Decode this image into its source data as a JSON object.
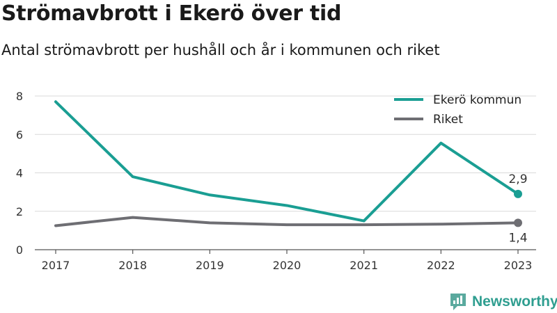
{
  "title": "Strömavbrott i Ekerö över tid",
  "subtitle": "Antal strömavbrott per hushåll och år i kommunen och riket",
  "brand": "Newsworthy",
  "colors": {
    "series1": "#1a9e93",
    "series2": "#6e6e73",
    "grid": "#d9d9d9",
    "brand": "#2f9e90"
  },
  "chart_data": {
    "type": "line",
    "x": [
      "2017",
      "2018",
      "2019",
      "2020",
      "2021",
      "2022",
      "2023"
    ],
    "ylim": [
      0,
      8
    ],
    "yticks": [
      0,
      2,
      4,
      6,
      8
    ],
    "grid": true,
    "legend_position": "top-right",
    "series": [
      {
        "name": "Ekerö kommun",
        "values": [
          7.7,
          3.8,
          2.85,
          2.3,
          1.5,
          5.55,
          2.9
        ],
        "end_label": "2,9"
      },
      {
        "name": "Riket",
        "values": [
          1.25,
          1.68,
          1.4,
          1.3,
          1.3,
          1.33,
          1.4
        ],
        "end_label": "1,4"
      }
    ]
  }
}
